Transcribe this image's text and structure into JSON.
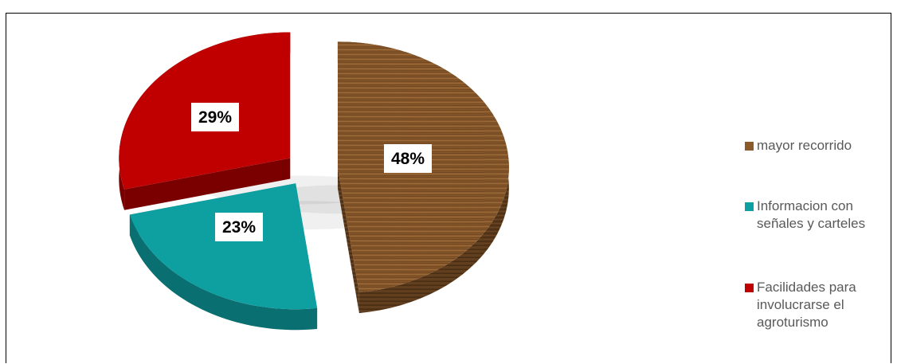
{
  "chart_data": {
    "type": "pie",
    "style": "3d-exploded",
    "title": "",
    "categories": [
      "mayor recorrido",
      "Informacion con señales y carteles",
      "Facilidades para involucrarse el agroturismo"
    ],
    "values": [
      48,
      23,
      29
    ],
    "data_labels": [
      "48%",
      "23%",
      "29%"
    ],
    "colors": [
      "#8B5A2B",
      "#0E9FA0",
      "#C00000"
    ],
    "legend_labels": [
      "mayor recorrido",
      "Informacion con\nseñales y carteles",
      "Facilidades para\ninvolucrarse el\nagroturismo"
    ],
    "legend_position": "right"
  }
}
